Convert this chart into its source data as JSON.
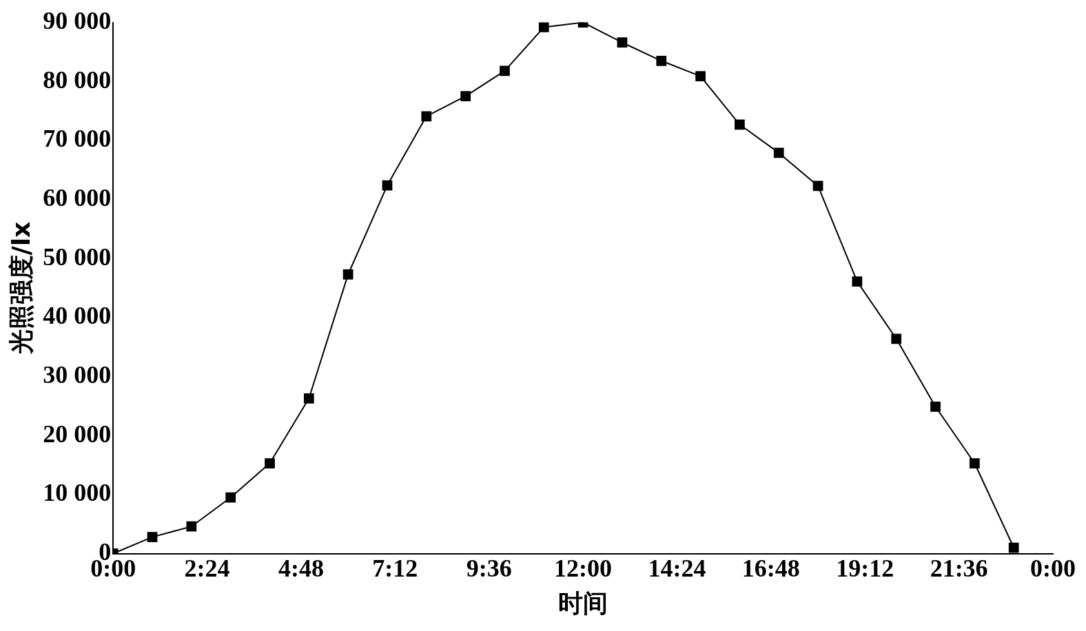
{
  "chart_data": {
    "type": "line",
    "xlabel": "时间",
    "ylabel": "光照强度/lx",
    "x": [
      0,
      1,
      2,
      3,
      4,
      5,
      6,
      7,
      8,
      9,
      10,
      11,
      12,
      13,
      14,
      15,
      16,
      17,
      18,
      19,
      20,
      21,
      22,
      23
    ],
    "series": [
      {
        "color": "#000000",
        "values": [
          0,
          2800,
          4600,
          9500,
          15300,
          26300,
          47300,
          62400,
          74100,
          77500,
          81800,
          89200,
          90000,
          86600,
          83500,
          80900,
          72700,
          67900,
          62300,
          46100,
          36400,
          24900,
          15300,
          1000
        ]
      }
    ],
    "xlim": [
      0,
      24
    ],
    "xticks": [
      {
        "value": 0,
        "label": "0:00"
      },
      {
        "value": 2.4,
        "label": "2:24"
      },
      {
        "value": 4.8,
        "label": "4:48"
      },
      {
        "value": 7.2,
        "label": "7:12"
      },
      {
        "value": 9.6,
        "label": "9:36"
      },
      {
        "value": 12,
        "label": "12:00"
      },
      {
        "value": 14.4,
        "label": "14:24"
      },
      {
        "value": 16.8,
        "label": "16:48"
      },
      {
        "value": 19.2,
        "label": "19:12"
      },
      {
        "value": 21.6,
        "label": "21:36"
      },
      {
        "value": 24,
        "label": "0:00"
      }
    ],
    "ylim": [
      0,
      90000
    ],
    "yticks": [
      0,
      {
        "value": 10000,
        "label": "10 000"
      },
      {
        "value": 20000,
        "label": "20 000"
      },
      {
        "value": 30000,
        "label": "30 000"
      },
      {
        "value": 40000,
        "label": "40 000"
      },
      {
        "value": 50000,
        "label": "50 000"
      },
      {
        "value": 60000,
        "label": "60 000"
      },
      {
        "value": 70000,
        "label": "70 000"
      },
      {
        "value": 80000,
        "label": "80 000"
      },
      {
        "value": 90000,
        "label": "90 000"
      }
    ],
    "grid": false,
    "legend": false,
    "marker": "square",
    "line_style": "solid"
  }
}
